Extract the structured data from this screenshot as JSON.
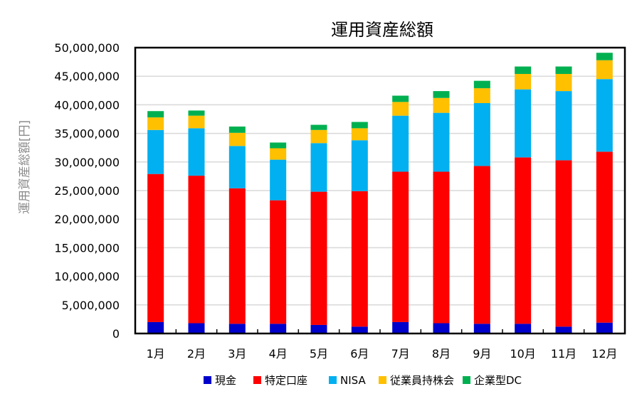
{
  "chart_data": {
    "type": "bar",
    "stacked": true,
    "title": "運用資産総額",
    "xlabel": "",
    "ylabel": "運用資産総額[円]",
    "ylim": [
      0,
      50000000
    ],
    "yticks": [
      "0",
      "5,000,000",
      "10,000,000",
      "15,000,000",
      "20,000,000",
      "25,000,000",
      "30,000,000",
      "35,000,000",
      "40,000,000",
      "45,000,000",
      "50,000,000"
    ],
    "grid": true,
    "legend": "bottom",
    "categories": [
      "1月",
      "2月",
      "3月",
      "4月",
      "5月",
      "6月",
      "7月",
      "8月",
      "9月",
      "10月",
      "11月",
      "12月"
    ],
    "series": [
      {
        "name": "現金",
        "color": "#0000CC",
        "values": [
          2000000,
          1800000,
          1700000,
          1700000,
          1500000,
          1200000,
          2000000,
          1800000,
          1700000,
          1700000,
          1200000,
          1900000
        ]
      },
      {
        "name": "特定口座",
        "color": "#FF0000",
        "values": [
          25900000,
          25800000,
          23700000,
          21600000,
          23300000,
          23700000,
          26300000,
          26500000,
          27600000,
          29100000,
          29100000,
          29900000
        ]
      },
      {
        "name": "NISA",
        "color": "#00B0F0",
        "values": [
          7700000,
          8300000,
          7400000,
          7100000,
          8500000,
          8900000,
          9800000,
          10300000,
          11000000,
          11900000,
          12100000,
          12700000
        ]
      },
      {
        "name": "従業員持株会",
        "color": "#FFC000",
        "values": [
          2200000,
          2200000,
          2300000,
          2000000,
          2300000,
          2100000,
          2400000,
          2600000,
          2600000,
          2700000,
          3000000,
          3300000
        ]
      },
      {
        "name": "企業型DC",
        "color": "#00B050",
        "values": [
          1100000,
          900000,
          1100000,
          1000000,
          900000,
          1100000,
          1100000,
          1200000,
          1300000,
          1300000,
          1300000,
          1300000
        ]
      }
    ]
  }
}
